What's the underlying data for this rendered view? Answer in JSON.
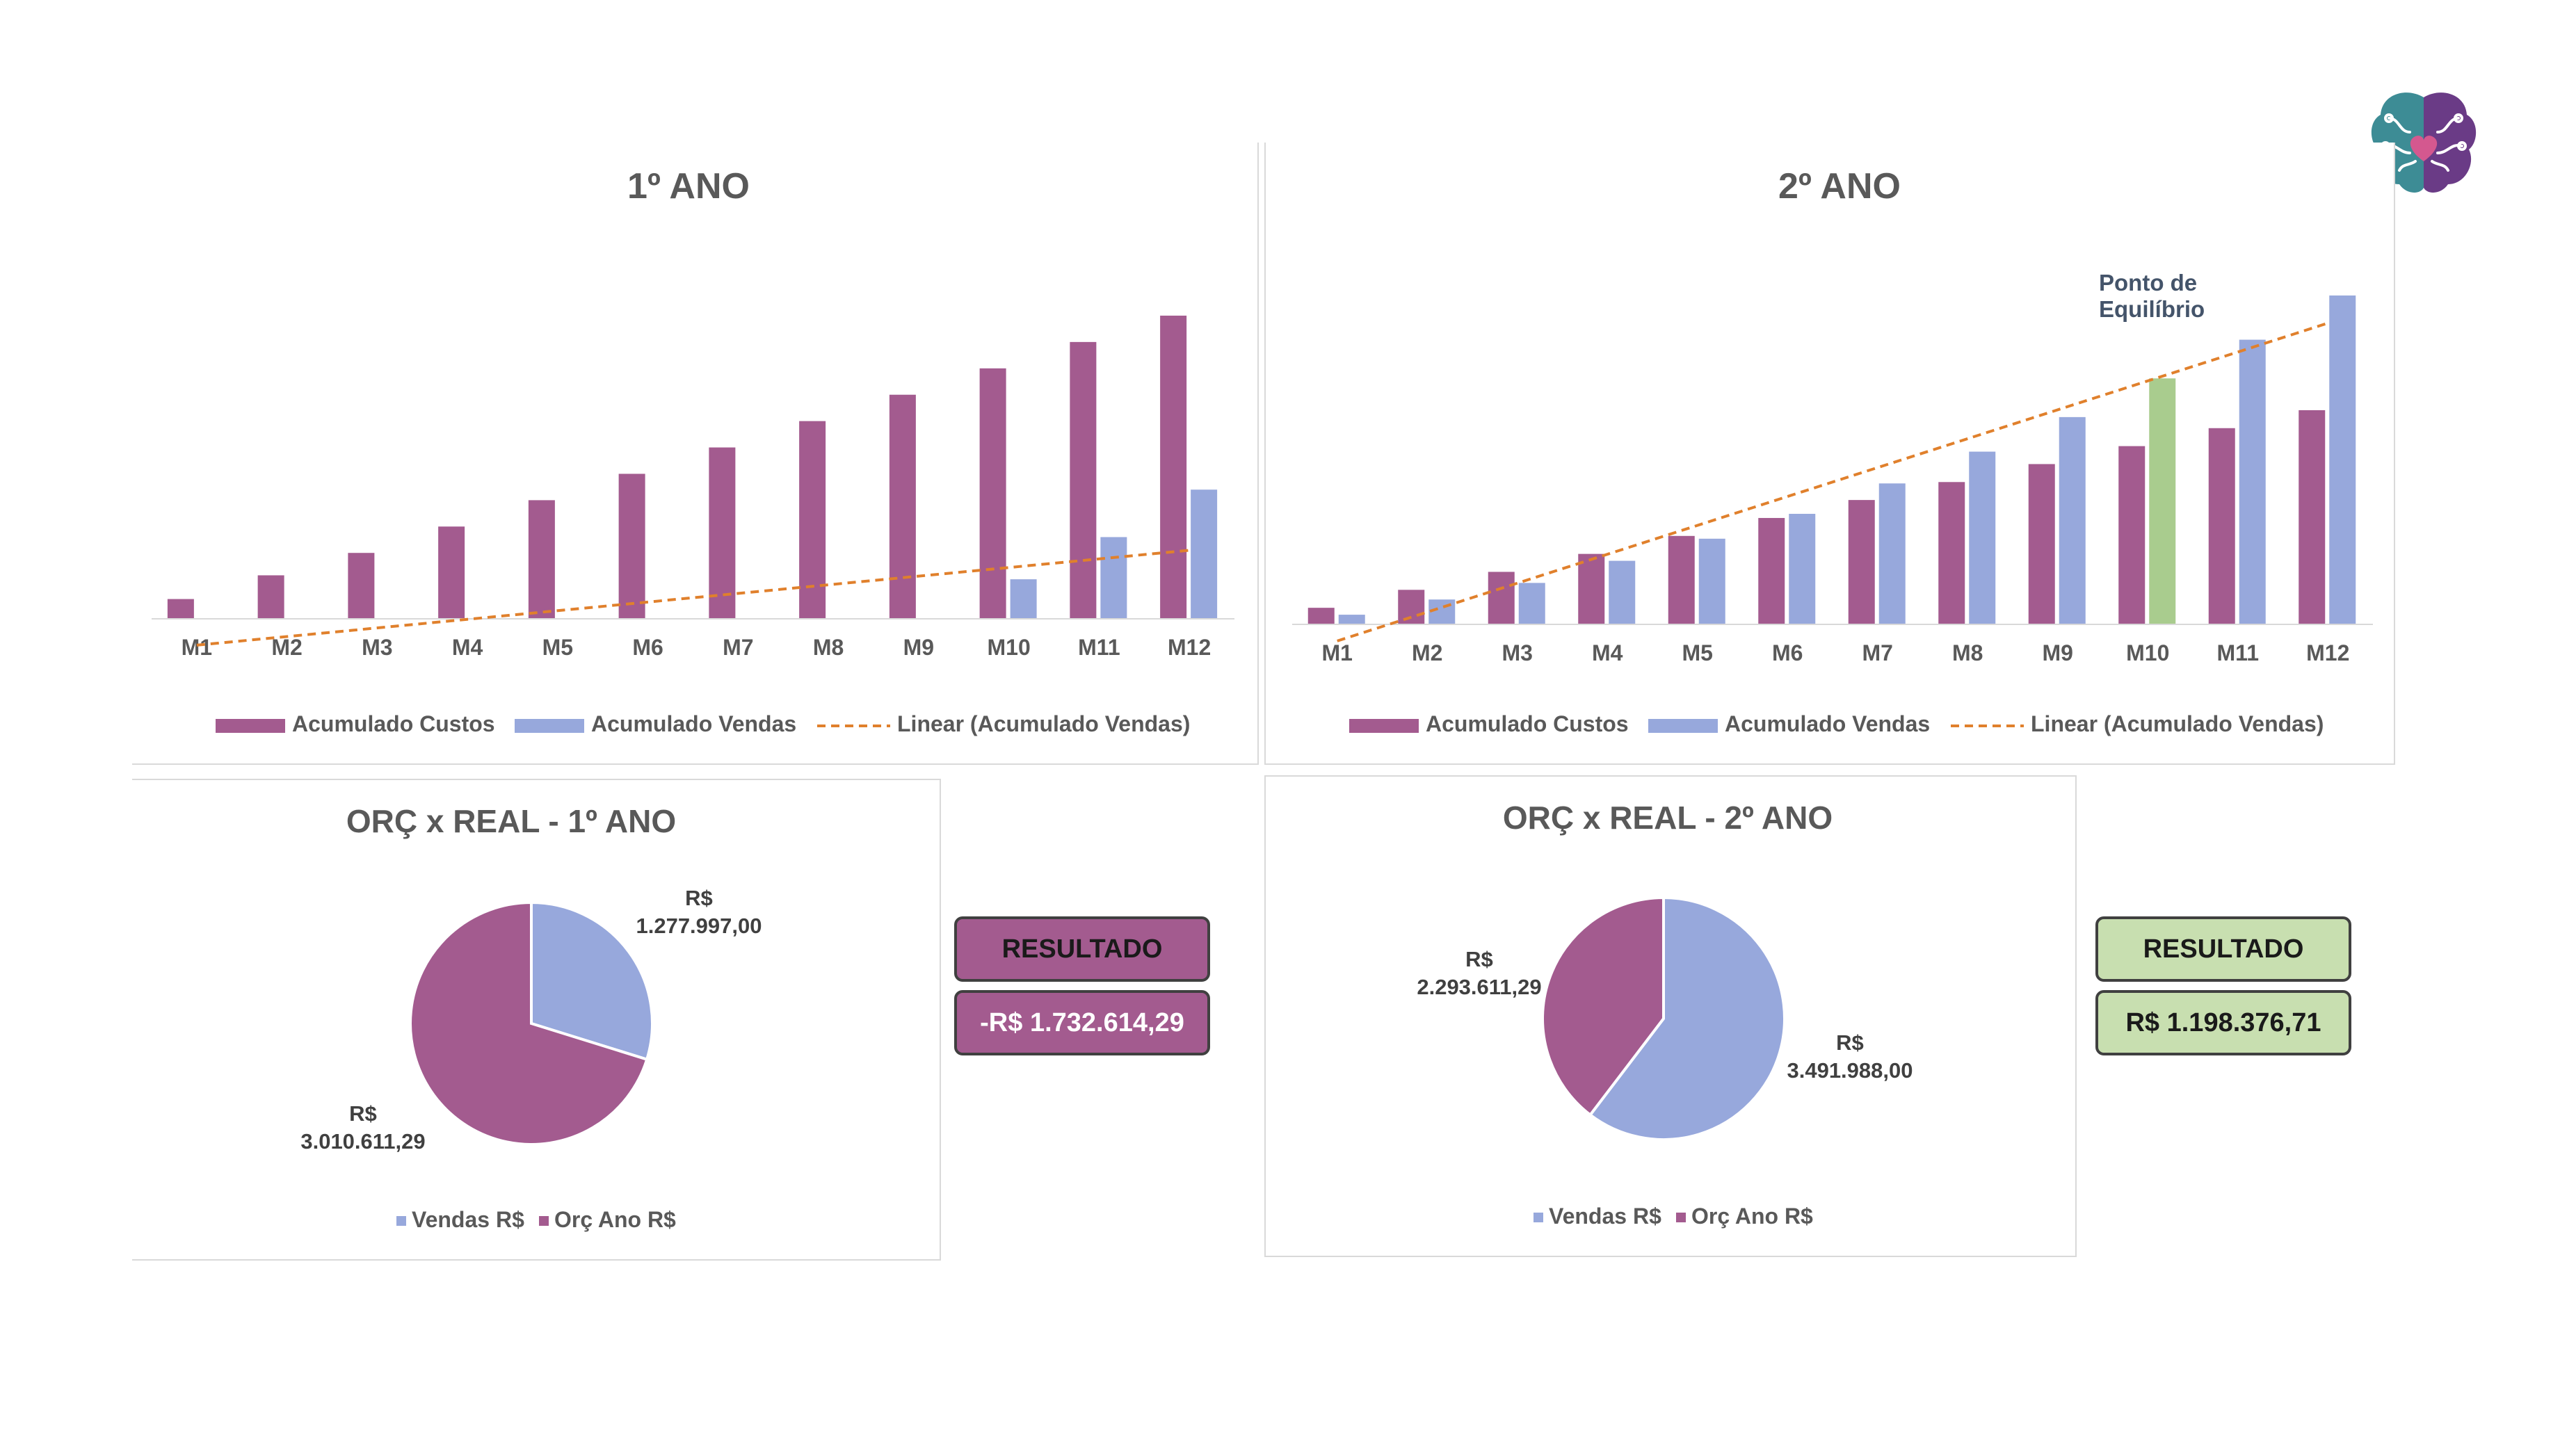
{
  "colors": {
    "custos": "#a35b8f",
    "vendas": "#97a8dc",
    "equilibrio": "#a9cc8e",
    "trend": "#e0802c",
    "result_neg_bg": "#a35b8f",
    "result_pos_bg": "#c8dfb0"
  },
  "logo": {
    "icon": "brain-heart-icon"
  },
  "result1": {
    "label": "RESULTADO",
    "value": "-R$ 1.732.614,29"
  },
  "result2": {
    "label": "RESULTADO",
    "value": "R$ 1.198.376,71"
  },
  "chart_data": [
    {
      "type": "bar",
      "title": "1º ANO",
      "categories": [
        "M1",
        "M2",
        "M3",
        "M4",
        "M5",
        "M6",
        "M7",
        "M8",
        "M9",
        "M10",
        "M11",
        "M12"
      ],
      "series": [
        {
          "name": "Acumulado Custos",
          "values": [
            7.5,
            16.5,
            25,
            35,
            45,
            55,
            65,
            75,
            85,
            95,
            105,
            115
          ]
        },
        {
          "name": "Acumulado Vendas",
          "values": [
            null,
            null,
            null,
            null,
            null,
            null,
            null,
            null,
            null,
            15,
            31,
            49
          ]
        }
      ],
      "trendline": {
        "name": "Linear (Acumulado Vendas)",
        "from": [
          1,
          -10
        ],
        "to": [
          12,
          26
        ]
      },
      "ylim": [
        0,
        120
      ],
      "legend": "bottom"
    },
    {
      "type": "bar",
      "title": "2º ANO",
      "categories": [
        "M1",
        "M2",
        "M3",
        "M4",
        "M5",
        "M6",
        "M7",
        "M8",
        "M9",
        "M10",
        "M11",
        "M12"
      ],
      "series": [
        {
          "name": "Acumulado Custos",
          "values": [
            6,
            12.5,
            19,
            25.5,
            32,
            38.5,
            45,
            51.5,
            58,
            64.5,
            71,
            77.5
          ]
        },
        {
          "name": "Acumulado Vendas",
          "values": [
            3.5,
            9,
            15,
            23,
            31,
            40,
            51,
            62.5,
            75,
            89,
            103,
            119
          ]
        }
      ],
      "highlight": {
        "index": 9,
        "series": 1
      },
      "annotation": {
        "text": [
          "Ponto de",
          "Equilíbrio"
        ]
      },
      "trendline": {
        "name": "Linear (Acumulado Vendas)",
        "from": [
          1,
          -6
        ],
        "to": [
          12,
          109
        ]
      },
      "ylim": [
        0,
        120
      ],
      "legend": "bottom"
    },
    {
      "type": "pie",
      "title": "ORÇ x REAL - 1º ANO",
      "labels": [
        "Vendas R$",
        "Orç Ano R$"
      ],
      "values": [
        1277997.0,
        3010611.29
      ],
      "data_labels": [
        [
          "R$",
          "1.277.997,00"
        ],
        [
          "R$",
          "3.010.611,29"
        ]
      ],
      "legend": "bottom"
    },
    {
      "type": "pie",
      "title": "ORÇ x REAL - 2º ANO",
      "labels": [
        "Vendas R$",
        "Orç Ano R$"
      ],
      "values": [
        3491988.0,
        2293611.29
      ],
      "data_labels": [
        [
          "R$",
          "3.491.988,00"
        ],
        [
          "R$",
          "2.293.611,29"
        ]
      ],
      "legend": "bottom"
    }
  ]
}
